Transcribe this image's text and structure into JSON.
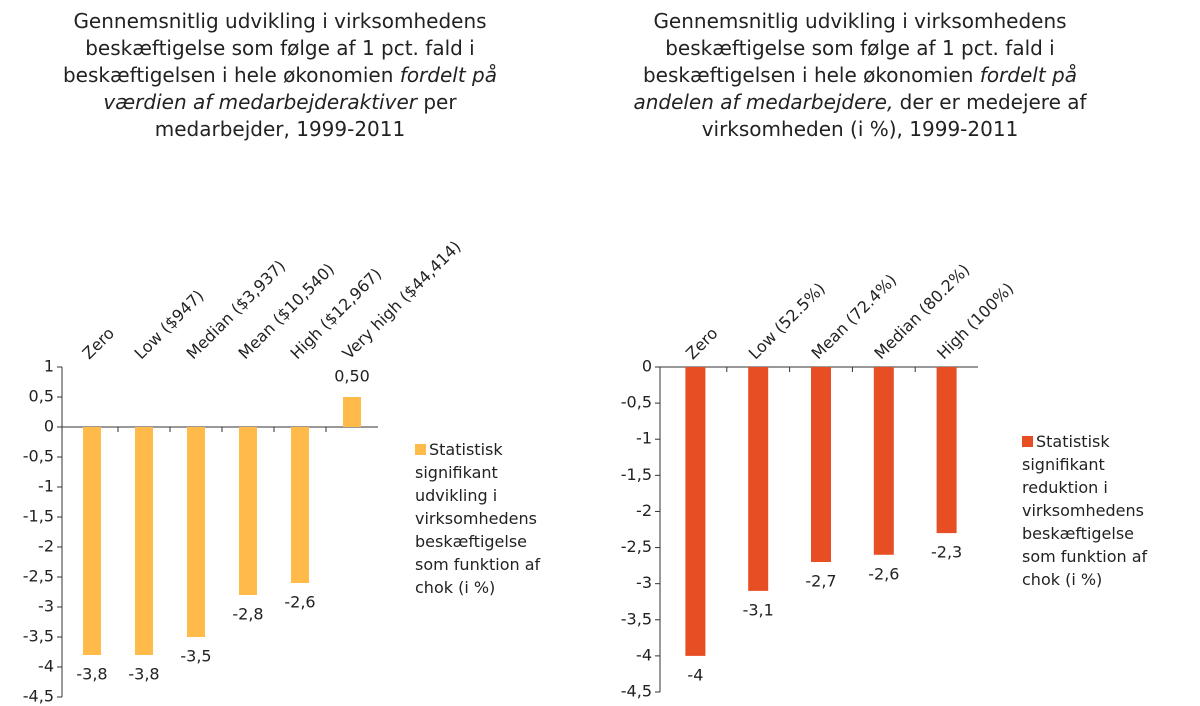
{
  "chart_data": [
    {
      "type": "bar",
      "title": [
        "Gennemsnitlig udvikling i virksomhedens beskæftigelse som følge af 1 pct. fald i beskæftigelsen i hele økonomien ",
        "fordelt på værdien af medarbejderaktiver",
        " per medarbejder, 1999-2011"
      ],
      "title_italic": [
        false,
        true,
        false
      ],
      "categories": [
        "Zero",
        "Low ($947)",
        "Median ($3,937)",
        "Mean ($10,540)",
        "High ($12,967)",
        "Very high ($44,414)"
      ],
      "series": [
        {
          "name": "Statistisk signifikant udvikling i virksomhedens beskæftigelse som funktion af chok (i %)",
          "color": "#ffba4a",
          "values": [
            -3.8,
            -3.8,
            -3.5,
            -2.8,
            -2.6,
            0.5
          ],
          "value_labels": [
            "-3,8",
            "-3,8",
            "-3,5",
            "-2,8",
            "-2,6",
            "0,50"
          ]
        }
      ],
      "ylim": [
        -4.5,
        1
      ],
      "yticks": [
        1,
        {
          "value": 0.5,
          "label": "0,5"
        },
        0,
        {
          "value": -0.5,
          "label": "-0,5"
        },
        -1,
        {
          "value": -1.5,
          "label": "-1,5"
        },
        -2,
        {
          "value": -2.5,
          "label": "-2,5"
        },
        -3,
        {
          "value": -3.5,
          "label": "-3,5"
        },
        -4,
        {
          "value": -4.5,
          "label": "-4,5"
        }
      ],
      "legend": "right"
    },
    {
      "type": "bar",
      "title": [
        "Gennemsnitlig udvikling i virksomhedens beskæftigelse som følge af 1 pct. fald i beskæftigelsen i hele økonomien ",
        "fordelt på andelen af medarbejdere,",
        " der er medejere af virksomheden (i %), 1999-2011"
      ],
      "title_italic": [
        false,
        true,
        false
      ],
      "categories": [
        "Zero",
        "Low (52.5%)",
        "Mean (72.4%)",
        "Median (80.2%)",
        "High (100%)"
      ],
      "series": [
        {
          "name": "Statistisk signifikant reduktion i virksomhedens beskæftigelse som funktion af chok (i %)",
          "color": "#e84e24",
          "values": [
            -4,
            -3.1,
            -2.7,
            -2.6,
            -2.3
          ],
          "value_labels": [
            "-4",
            "-3,1",
            "-2,7",
            "-2,6",
            "-2,3"
          ]
        }
      ],
      "ylim": [
        -4.5,
        0
      ],
      "yticks": [
        0,
        {
          "value": -0.5,
          "label": "-0,5"
        },
        -1,
        {
          "value": -1.5,
          "label": "-1,5"
        },
        -2,
        {
          "value": -2.5,
          "label": "-2,5"
        },
        -3,
        {
          "value": -3.5,
          "label": "-3,5"
        },
        -4,
        {
          "value": -4.5,
          "label": "-4,5"
        }
      ],
      "legend": "right"
    }
  ]
}
